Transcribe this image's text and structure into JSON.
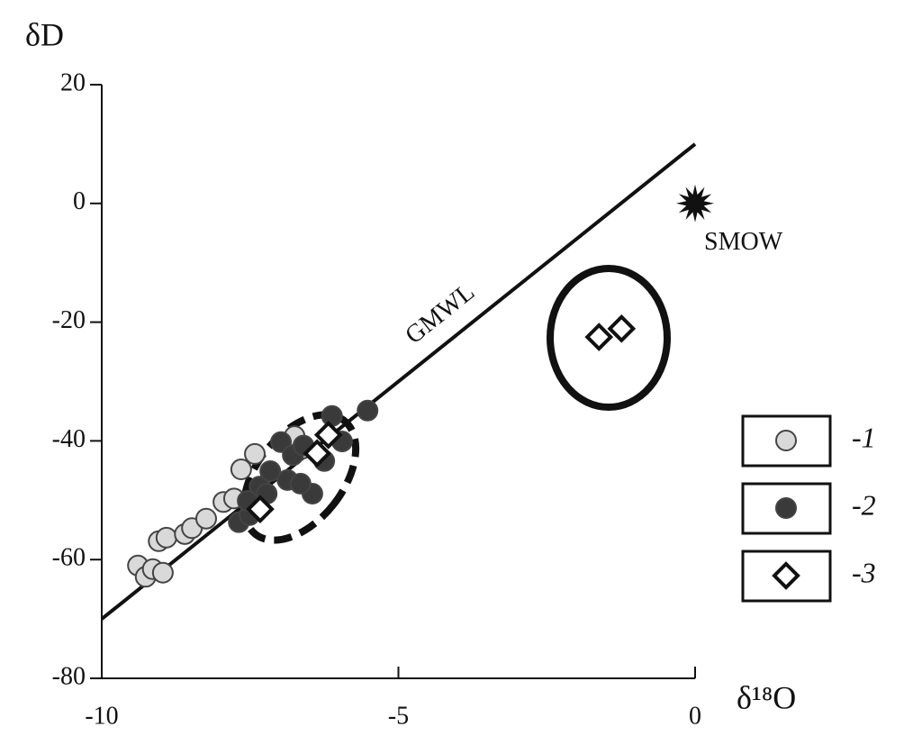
{
  "chart_data": {
    "type": "scatter",
    "y_label": "δD",
    "x_label": "δ¹⁸O",
    "xlim": [
      -10,
      0
    ],
    "ylim": [
      -80,
      20
    ],
    "xticks": [
      -10,
      -5,
      0
    ],
    "yticks": [
      -80,
      -60,
      -40,
      -20,
      0,
      20
    ],
    "series": [
      {
        "name": "-1",
        "color": "#d9d9d9",
        "marker": "circle",
        "x": [
          -9.39,
          -9.26,
          -9.14,
          -8.97,
          -9.04,
          -8.91,
          -8.6,
          -8.48,
          -8.24,
          -7.95,
          -7.77,
          -7.65,
          -7.42,
          -6.75,
          -6.62
        ],
        "y": [
          -61.0,
          -62.9,
          -61.6,
          -62.2,
          -56.9,
          -56.3,
          -55.7,
          -54.7,
          -53.1,
          -50.3,
          -49.7,
          -44.8,
          -42.2,
          -39.2,
          -41.3
        ]
      },
      {
        "name": "-2",
        "color": "#3a3a3a",
        "marker": "circle",
        "x": [
          -5.52,
          -6.12,
          -7.69,
          -7.51,
          -7.34,
          -7.16,
          -6.98,
          -6.78,
          -6.87,
          -6.6,
          -6.45,
          -6.65,
          -6.25,
          -5.95,
          -7.22,
          -7.54
        ],
        "y": [
          -34.9,
          -35.8,
          -53.7,
          -52.5,
          -47.7,
          -45.1,
          -40.2,
          -42.4,
          -46.6,
          -40.8,
          -48.9,
          -47.2,
          -43.4,
          -40.1,
          -48.9,
          -50.1
        ]
      },
      {
        "name": "-3",
        "color": "#ffffff",
        "marker": "diamond",
        "x": [
          -7.33,
          -6.37,
          -6.18,
          -1.62,
          -1.24
        ],
        "y": [
          -51.5,
          -42.1,
          -39.0,
          -22.5,
          -21.1
        ]
      }
    ],
    "lines": [
      {
        "label": "GMWL",
        "x": [
          -10,
          0
        ],
        "y": [
          -70,
          10
        ]
      }
    ],
    "points": [
      {
        "label": "SMOW",
        "x": 0,
        "y": 0
      }
    ]
  }
}
